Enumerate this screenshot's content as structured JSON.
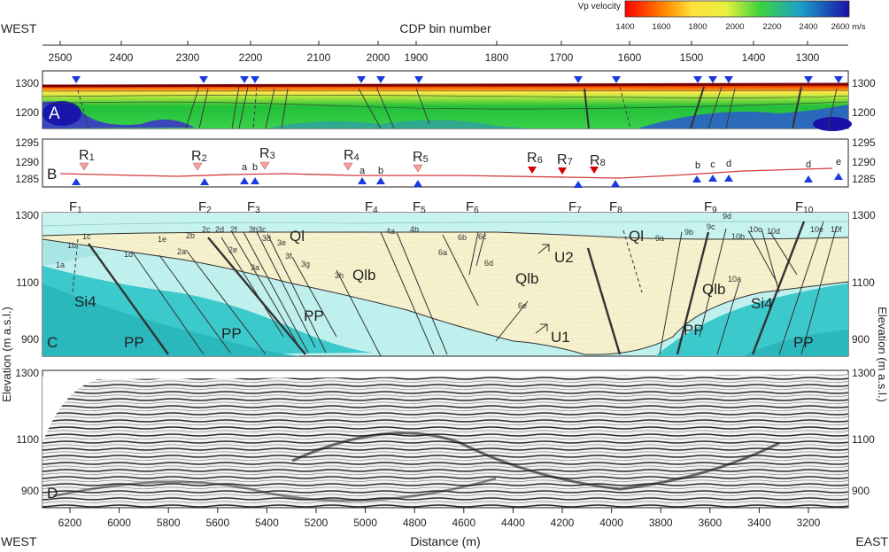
{
  "header": {
    "west": "WEST",
    "east": "EAST",
    "top_axis_title": "CDP bin number",
    "bottom_axis_title": "Distance (m)",
    "left_axis_title": "Elevation (m a.s.l.)",
    "right_axis_title": "Elevation (m a.s.l.)"
  },
  "colorbar": {
    "title": "Vp velocity",
    "unit_label": "2600 m/s",
    "tick_labels": [
      "1400",
      "1600",
      "1800",
      "2000",
      "2200",
      "2400"
    ],
    "colors": [
      "#ff0000",
      "#ffd000",
      "#ffff40",
      "#9fe23c",
      "#22c24a",
      "#2a5fd2",
      "#2010b0"
    ]
  },
  "cdp_ticks": [
    "2500",
    "2400",
    "2300",
    "2200",
    "2100",
    "2000",
    "1900",
    "1800",
    "1700",
    "1600",
    "1500",
    "1400",
    "1300"
  ],
  "distance_ticks": [
    "6200",
    "6000",
    "5800",
    "5600",
    "5400",
    "5200",
    "5000",
    "4800",
    "4600",
    "4400",
    "4200",
    "4000",
    "3800",
    "3600",
    "3400",
    "3200"
  ],
  "panel_a": {
    "letter": "A",
    "ticks": [
      "1300",
      "1200"
    ]
  },
  "panel_b": {
    "letter": "B",
    "ticks": [
      "1295",
      "1290",
      "1285"
    ],
    "receivers": [
      {
        "label": "R",
        "sub": "1"
      },
      {
        "label": "R",
        "sub": "2"
      },
      {
        "label": "R",
        "sub": "3"
      },
      {
        "label": "R",
        "sub": "4"
      },
      {
        "label": "R",
        "sub": "5"
      },
      {
        "label": "R",
        "sub": "6"
      },
      {
        "label": "R",
        "sub": "7"
      },
      {
        "label": "R",
        "sub": "8"
      }
    ],
    "small_labels": [
      "a",
      "b",
      "a",
      "b",
      "b",
      "c",
      "d",
      "d",
      "e"
    ]
  },
  "faults": [
    {
      "label": "F",
      "sub": "1"
    },
    {
      "label": "F",
      "sub": "2"
    },
    {
      "label": "F",
      "sub": "3"
    },
    {
      "label": "F",
      "sub": "4"
    },
    {
      "label": "F",
      "sub": "5"
    },
    {
      "label": "F",
      "sub": "6"
    },
    {
      "label": "F",
      "sub": "7"
    },
    {
      "label": "F",
      "sub": "8"
    },
    {
      "label": "F",
      "sub": "9"
    },
    {
      "label": "F",
      "sub": "10"
    }
  ],
  "panel_c": {
    "letter": "C",
    "ticks": [
      "1300",
      "1100",
      "900"
    ],
    "units": [
      "Ql",
      "Ql",
      "Qlb",
      "Qlb",
      "Qlb",
      "PP",
      "PP",
      "PP",
      "PP",
      "PP",
      "Si4",
      "Si4",
      "U2",
      "U1"
    ],
    "fault_labels": [
      "1a",
      "1b",
      "1c",
      "1d",
      "1e",
      "2a",
      "2b",
      "2c",
      "2d",
      "2e",
      "2f",
      "3a",
      "3b",
      "3c",
      "3d",
      "3e",
      "3f",
      "3g",
      "3h",
      "4a",
      "4b",
      "6a",
      "6b",
      "6c",
      "6d",
      "6e",
      "9a",
      "9b",
      "9c",
      "9d",
      "10a",
      "10b",
      "10c",
      "10d",
      "10e",
      "10f"
    ]
  },
  "panel_d": {
    "letter": "D",
    "ticks": [
      "1300",
      "1100",
      "900"
    ]
  }
}
